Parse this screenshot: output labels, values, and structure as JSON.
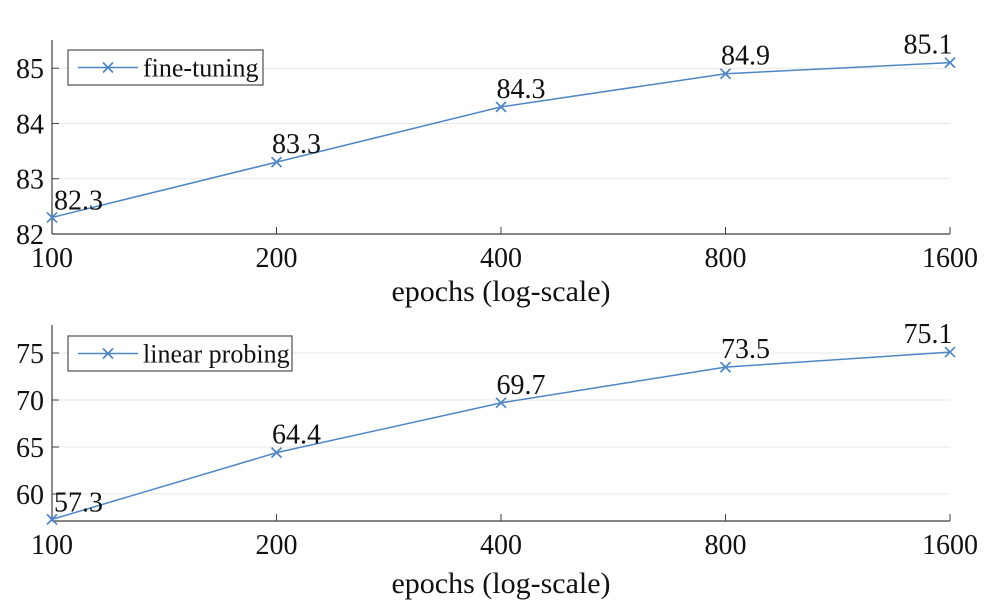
{
  "figure": {
    "background": "#ffffff",
    "line_color": "#4e86c5",
    "grid_color": "#e7e7e7",
    "axis_color": "#3f3f3f",
    "legend_border_color": "#4d4d4d",
    "text_color": "#111111"
  },
  "chart_data": [
    {
      "type": "line",
      "title": "",
      "xlabel": "epochs (log-scale)",
      "ylabel": "",
      "x_scale": "log2",
      "x": [
        100,
        200,
        400,
        800,
        1600
      ],
      "x_tick_labels": [
        "100",
        "200",
        "400",
        "800",
        "1600"
      ],
      "series": [
        {
          "name": "fine-tuning",
          "values": [
            82.3,
            83.3,
            84.3,
            84.9,
            85.1
          ],
          "point_labels": [
            "82.3",
            "83.3",
            "84.3",
            "84.9",
            "85.1"
          ]
        }
      ],
      "yticks": [
        82,
        83,
        84,
        85
      ],
      "ytick_labels": [
        "82",
        "83",
        "84",
        "85"
      ],
      "ylim": [
        82,
        85.51
      ],
      "grid": "horizontal",
      "legend": {
        "label": "fine-tuning",
        "position": "top-left",
        "marker": "x"
      }
    },
    {
      "type": "line",
      "title": "",
      "xlabel": "epochs (log-scale)",
      "ylabel": "",
      "x_scale": "log2",
      "x": [
        100,
        200,
        400,
        800,
        1600
      ],
      "x_tick_labels": [
        "100",
        "200",
        "400",
        "800",
        "1600"
      ],
      "series": [
        {
          "name": "linear probing",
          "values": [
            57.3,
            64.4,
            69.7,
            73.5,
            75.1
          ],
          "point_labels": [
            "57.3",
            "64.4",
            "69.7",
            "73.5",
            "75.1"
          ]
        }
      ],
      "yticks": [
        60,
        65,
        70,
        75
      ],
      "ytick_labels": [
        "60",
        "65",
        "70",
        "75"
      ],
      "ylim": [
        57.13,
        77.98
      ],
      "grid": "horizontal",
      "legend": {
        "label": "linear probing",
        "position": "top-left",
        "marker": "x"
      }
    }
  ]
}
